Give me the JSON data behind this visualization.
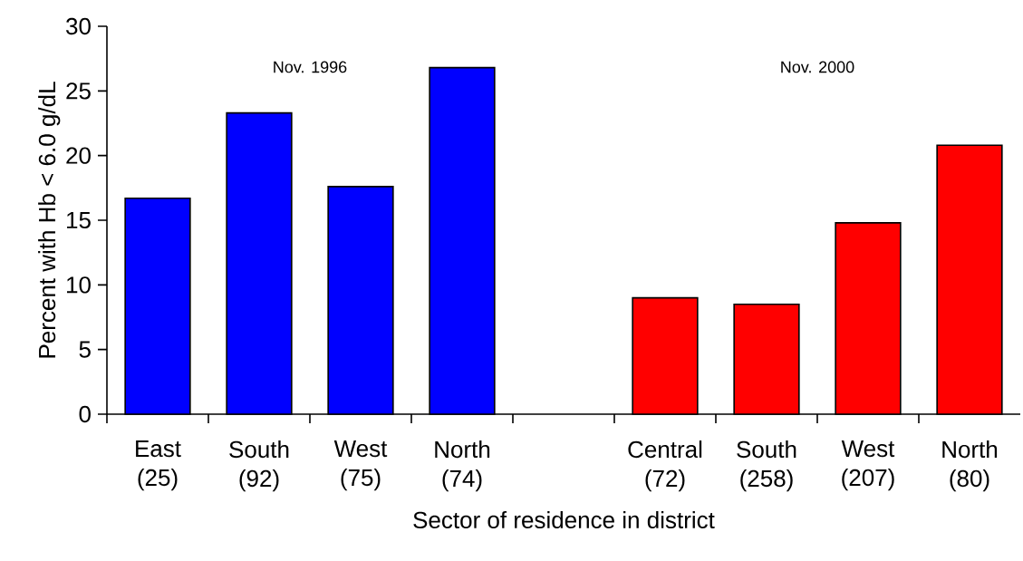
{
  "chart_data": {
    "type": "bar",
    "categories": [
      "East (25)",
      "South (92)",
      "West (75)",
      "North (74)",
      null,
      "Central (72)",
      "South (258)",
      "West (207)",
      "North (80)"
    ],
    "series": [
      {
        "color": "#0000ff",
        "values": [
          16.7,
          23.3,
          17.6,
          26.8,
          null,
          null,
          null,
          null,
          null
        ]
      },
      {
        "color": "#ff0000",
        "values": [
          null,
          null,
          null,
          null,
          null,
          9.0,
          8.5,
          14.8,
          20.8
        ]
      }
    ],
    "annotations": [
      "Nov. 1996",
      "Nov. 2000"
    ],
    "xlabel": "Sector of residence in district",
    "ylabel": "Percent with Hb < 6.0 g/dL",
    "ylim": [
      0,
      30
    ],
    "yticks": [
      0,
      5,
      10,
      15,
      20,
      25,
      30
    ]
  }
}
